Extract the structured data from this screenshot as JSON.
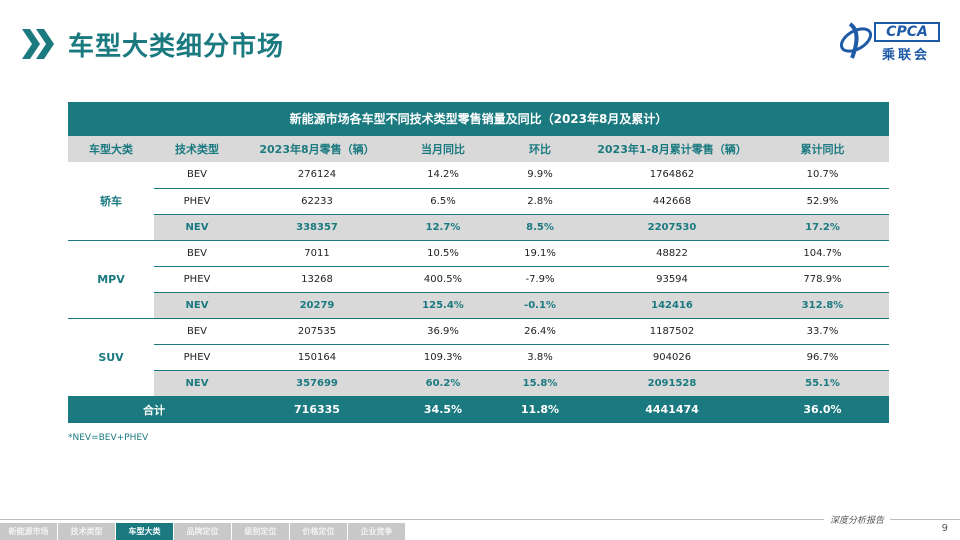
{
  "header": {
    "title": "车型大类细分市场"
  },
  "logo": {
    "text": "CPCA",
    "cn": "乘联会"
  },
  "colors": {
    "accent": "#1a7a80",
    "header_gray": "#d9d9d9"
  },
  "table": {
    "title": "新能源市场各车型不同技术类型零售销量及同比（2023年8月及累计）",
    "columns": [
      "车型大类",
      "技术类型",
      "2023年8月零售（辆）",
      "当月同比",
      "环比",
      "2023年1-8月累计零售（辆）",
      "累计同比"
    ],
    "groups": [
      {
        "category": "轿车",
        "rows": [
          [
            "BEV",
            "276124",
            "14.2%",
            "9.9%",
            "1764862",
            "10.7%"
          ],
          [
            "PHEV",
            "62233",
            "6.5%",
            "2.8%",
            "442668",
            "52.9%"
          ],
          [
            "NEV",
            "338357",
            "12.7%",
            "8.5%",
            "2207530",
            "17.2%"
          ]
        ]
      },
      {
        "category": "MPV",
        "rows": [
          [
            "BEV",
            "7011",
            "10.5%",
            "19.1%",
            "48822",
            "104.7%"
          ],
          [
            "PHEV",
            "13268",
            "400.5%",
            "-7.9%",
            "93594",
            "778.9%"
          ],
          [
            "NEV",
            "20279",
            "125.4%",
            "-0.1%",
            "142416",
            "312.8%"
          ]
        ]
      },
      {
        "category": "SUV",
        "rows": [
          [
            "BEV",
            "207535",
            "36.9%",
            "26.4%",
            "1187502",
            "33.7%"
          ],
          [
            "PHEV",
            "150164",
            "109.3%",
            "3.8%",
            "904026",
            "96.7%"
          ],
          [
            "NEV",
            "357699",
            "60.2%",
            "15.8%",
            "2091528",
            "55.1%"
          ]
        ]
      }
    ],
    "total": [
      "合计",
      "716335",
      "34.5%",
      "11.8%",
      "4441474",
      "36.0%"
    ]
  },
  "note": "*NEV=BEV+PHEV",
  "footer": {
    "tagline": "深度分析报告",
    "page_number": "9",
    "nav": [
      "新能源市场",
      "技术类型",
      "车型大类",
      "品牌定位",
      "级别定位",
      "价格定位",
      "企业竞争"
    ],
    "active_index": 2
  }
}
